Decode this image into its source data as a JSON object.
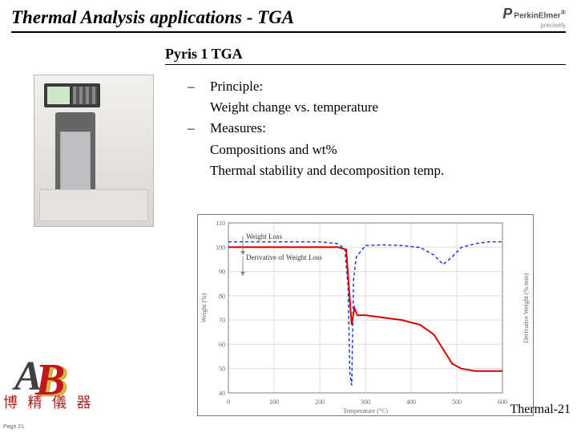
{
  "header": {
    "title": "Thermal Analysis applications - TGA",
    "brand_name": "PerkinElmer",
    "brand_reg": "®",
    "brand_tagline": "precisely"
  },
  "subtitle": "Pyris 1 TGA",
  "bullets": {
    "b1_label": "Principle:",
    "b1_detail": "Weight change vs. temperature",
    "b2_label": "Measures:",
    "b2_detail1": "Compositions and wt%",
    "b2_detail2": "Thermal stability and decomposition temp."
  },
  "chart": {
    "type": "line",
    "title_fontsize": 9,
    "xlabel": "Temperature (°C)",
    "ylabel_left": "Weight (%)",
    "ylabel_right": "Derivative Weight (%/min)",
    "xlim": [
      0,
      600
    ],
    "ylim_left": [
      40,
      110
    ],
    "ylim_right": [
      -40,
      5
    ],
    "xtick_step": 100,
    "ytick_left_step": 10,
    "background_color": "#ffffff",
    "grid_color": "#dcdcdc",
    "axis_color": "#808080",
    "label_weight_loss": "Weight Loss",
    "label_derivative": "Derivative of Weight Loss",
    "series": {
      "weight": {
        "color": "#d80000",
        "width": 2,
        "data": [
          [
            0,
            100
          ],
          [
            50,
            100
          ],
          [
            100,
            100
          ],
          [
            150,
            100
          ],
          [
            200,
            100
          ],
          [
            240,
            100
          ],
          [
            258,
            99
          ],
          [
            266,
            78
          ],
          [
            270,
            68
          ],
          [
            276,
            75
          ],
          [
            282,
            72
          ],
          [
            300,
            72
          ],
          [
            340,
            71
          ],
          [
            380,
            70
          ],
          [
            420,
            68
          ],
          [
            450,
            64
          ],
          [
            470,
            58
          ],
          [
            490,
            52
          ],
          [
            510,
            50
          ],
          [
            540,
            49
          ],
          [
            570,
            49
          ],
          [
            600,
            49
          ]
        ]
      },
      "derivative": {
        "color": "#1030d8",
        "width": 1.4,
        "dash": "4 3",
        "data": [
          [
            0,
            0
          ],
          [
            50,
            0
          ],
          [
            100,
            0
          ],
          [
            150,
            0
          ],
          [
            200,
            0
          ],
          [
            240,
            -0.5
          ],
          [
            255,
            -2
          ],
          [
            262,
            -12
          ],
          [
            266,
            -35
          ],
          [
            270,
            -38
          ],
          [
            274,
            -10
          ],
          [
            280,
            -4
          ],
          [
            300,
            -1
          ],
          [
            340,
            -0.8
          ],
          [
            380,
            -1
          ],
          [
            420,
            -1.5
          ],
          [
            450,
            -3.5
          ],
          [
            470,
            -6
          ],
          [
            490,
            -4
          ],
          [
            510,
            -1.5
          ],
          [
            540,
            -0.5
          ],
          [
            570,
            0
          ],
          [
            600,
            0
          ]
        ]
      }
    }
  },
  "footer": {
    "logo_text": "博 精 儀 器",
    "page_label": "Thermal-21",
    "tiny": "Page 21"
  },
  "colors": {
    "logo_red": "#c01818",
    "logo_gold": "#d8b840",
    "logo_shadow": "#404040"
  }
}
